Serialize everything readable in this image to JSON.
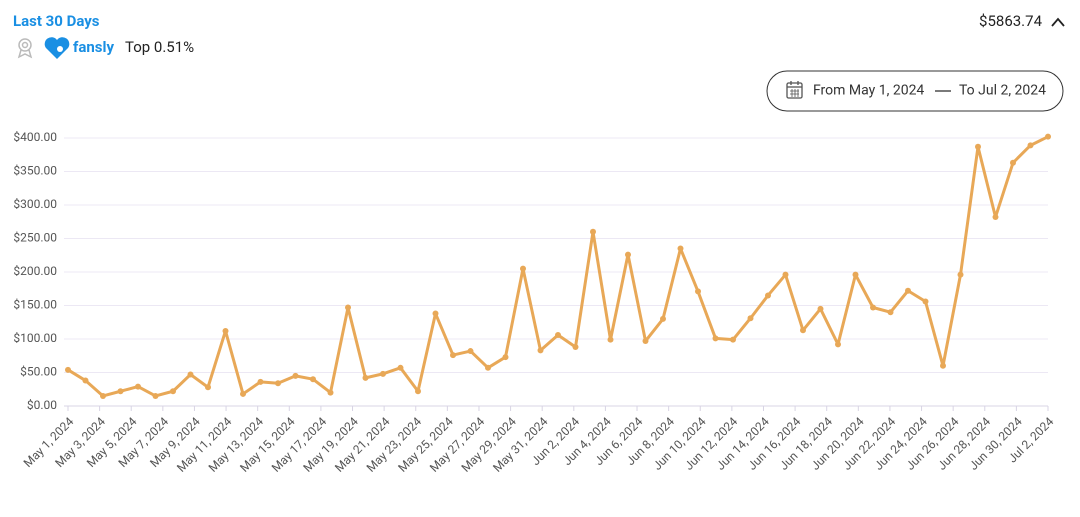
{
  "header": {
    "title": "Last 30 Days",
    "brand": "fansly",
    "rank": "Top 0.51%",
    "total": "$5863.74"
  },
  "date_range": {
    "from": "From May 1, 2024",
    "to": "To Jul 2, 2024"
  },
  "chart_data": {
    "type": "line",
    "color": "#e8a857",
    "grid": true,
    "xticks": [
      "May 1, 2024",
      "May 3, 2024",
      "May 5, 2024",
      "May 7, 2024",
      "May 9, 2024",
      "May 11, 2024",
      "May 13, 2024",
      "May 15, 2024",
      "May 17, 2024",
      "May 19, 2024",
      "May 21, 2024",
      "May 23, 2024",
      "May 25, 2024",
      "May 27, 2024",
      "May 29, 2024",
      "May 31, 2024",
      "Jun 2, 2024",
      "Jun 4, 2024",
      "Jun 6, 2024",
      "Jun 8, 2024",
      "Jun 10, 2024",
      "Jun 12, 2024",
      "Jun 14, 2024",
      "Jun 16, 2024",
      "Jun 18, 2024",
      "Jun 20, 2024",
      "Jun 22, 2024",
      "Jun 24, 2024",
      "Jun 26, 2024",
      "Jun 28, 2024",
      "Jun 30, 2024",
      "Jul 2, 2024"
    ],
    "values": [
      54,
      38,
      15,
      22,
      29,
      15,
      22,
      47,
      28,
      112,
      18,
      36,
      34,
      45,
      40,
      20,
      147,
      42,
      48,
      57,
      22,
      138,
      76,
      82,
      57,
      73,
      205,
      83,
      106,
      88,
      260,
      99,
      226,
      97,
      130,
      235,
      171,
      101,
      99,
      131,
      165,
      196,
      113,
      145,
      92,
      196,
      147,
      140,
      172,
      156,
      60,
      196,
      387,
      282,
      363,
      389,
      402
    ],
    "ylim": [
      0,
      400
    ],
    "yticks": [
      {
        "value": 0,
        "label": "$0.00"
      },
      {
        "value": 50,
        "label": "$50.00"
      },
      {
        "value": 100,
        "label": "$100.00"
      },
      {
        "value": 150,
        "label": "$150.00"
      },
      {
        "value": 200,
        "label": "$200.00"
      },
      {
        "value": 250,
        "label": "$250.00"
      },
      {
        "value": 300,
        "label": "$300.00"
      },
      {
        "value": 350,
        "label": "$350.00"
      },
      {
        "value": 400,
        "label": "$400.00"
      }
    ]
  }
}
